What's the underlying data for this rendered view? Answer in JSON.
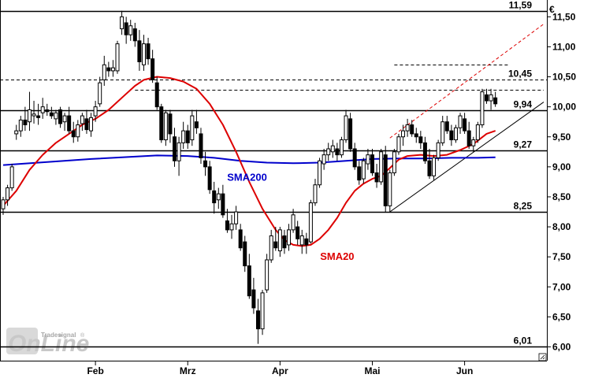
{
  "chart_data": {
    "type": "candlestick",
    "currency": "€",
    "y_ticks": [
      "11,50",
      "11,00",
      "10,50",
      "10,00",
      "9,50",
      "9,00",
      "8,50",
      "8,00",
      "7,50",
      "7,00",
      "6,50",
      "6,00"
    ],
    "y_tick_values": [
      11.5,
      11.0,
      10.5,
      10.0,
      9.5,
      9.0,
      8.5,
      8.0,
      7.5,
      7.0,
      6.5,
      6.0
    ],
    "ylim": [
      5.77,
      11.78
    ],
    "x_labels": [
      "Feb",
      "Mrz",
      "Apr",
      "Mai",
      "Jun"
    ],
    "x_label_days": [
      21,
      42,
      63,
      84,
      105
    ],
    "total_days": 123,
    "levels": [
      {
        "value": 11.59,
        "label": "11,59",
        "style": "solid"
      },
      {
        "value": 10.45,
        "label": "10,45",
        "style": "dashed"
      },
      {
        "value": 9.94,
        "label": "9,94",
        "style": "solid"
      },
      {
        "value": 9.27,
        "label": "9,27",
        "style": "solid"
      },
      {
        "value": 8.25,
        "label": "8,25",
        "style": "solid"
      },
      {
        "value": 6.01,
        "label": "6,01",
        "style": "solid"
      }
    ],
    "extra_dashed": [
      {
        "value": 10.29,
        "from_day": 30,
        "to_day": 123
      },
      {
        "value": 10.7,
        "from_day": 89,
        "to_day": 115
      }
    ],
    "trend_lines": [
      {
        "from": [
          88,
          8.25
        ],
        "to": [
          123,
          10.08
        ],
        "color": "#000000",
        "dashed": false
      },
      {
        "from": [
          88,
          9.48
        ],
        "to": [
          123,
          11.38
        ],
        "color": "#dd0000",
        "dashed": true
      }
    ],
    "candles": [
      [
        0,
        8.3,
        8.5,
        8.2,
        8.45
      ],
      [
        1,
        8.45,
        8.7,
        8.35,
        8.65
      ],
      [
        2,
        8.65,
        9.05,
        8.6,
        9.0
      ],
      [
        3,
        9.55,
        9.7,
        9.45,
        9.6
      ],
      [
        4,
        9.6,
        9.85,
        9.5,
        9.78
      ],
      [
        5,
        9.78,
        10.0,
        9.6,
        9.7
      ],
      [
        6,
        9.75,
        10.25,
        9.6,
        9.95
      ],
      [
        7,
        9.85,
        10.1,
        9.72,
        9.88
      ],
      [
        8,
        9.85,
        10.05,
        9.7,
        9.82
      ],
      [
        9,
        9.9,
        10.15,
        9.8,
        10.0
      ],
      [
        10,
        9.95,
        10.05,
        9.85,
        9.92
      ],
      [
        11,
        9.9,
        10.0,
        9.8,
        9.85
      ],
      [
        12,
        9.8,
        9.95,
        9.7,
        9.9
      ],
      [
        13,
        9.95,
        10.0,
        9.65,
        9.72
      ],
      [
        14,
        9.75,
        9.9,
        9.6,
        9.85
      ],
      [
        15,
        9.85,
        10.0,
        9.55,
        9.6
      ],
      [
        16,
        9.6,
        9.75,
        9.4,
        9.5
      ],
      [
        17,
        9.5,
        9.78,
        9.42,
        9.7
      ],
      [
        18,
        9.72,
        9.9,
        9.6,
        9.85
      ],
      [
        19,
        9.8,
        9.95,
        9.55,
        9.62
      ],
      [
        20,
        9.6,
        9.9,
        9.5,
        9.82
      ],
      [
        21,
        9.85,
        10.1,
        9.75,
        10.0
      ],
      [
        22,
        10.05,
        10.5,
        10.0,
        10.4
      ],
      [
        23,
        10.45,
        10.85,
        10.35,
        10.7
      ],
      [
        24,
        10.65,
        10.75,
        10.5,
        10.6
      ],
      [
        25,
        10.6,
        10.78,
        10.5,
        10.65
      ],
      [
        26,
        10.6,
        11.1,
        10.55,
        11.05
      ],
      [
        27,
        11.3,
        11.6,
        11.2,
        11.5
      ],
      [
        28,
        11.4,
        11.5,
        11.05,
        11.2
      ],
      [
        29,
        11.2,
        11.45,
        11.1,
        11.35
      ],
      [
        30,
        11.3,
        11.4,
        11.0,
        11.1
      ],
      [
        31,
        11.1,
        11.28,
        10.6,
        10.75
      ],
      [
        32,
        10.7,
        11.2,
        10.6,
        11.05
      ],
      [
        33,
        11.05,
        11.15,
        10.7,
        10.8
      ],
      [
        34,
        10.8,
        10.95,
        10.4,
        10.45
      ],
      [
        35,
        10.4,
        10.5,
        9.95,
        10.0
      ],
      [
        36,
        10.0,
        10.05,
        9.4,
        9.45
      ],
      [
        37,
        9.45,
        9.95,
        9.35,
        9.9
      ],
      [
        38,
        9.88,
        9.95,
        9.4,
        9.55
      ],
      [
        39,
        9.5,
        9.65,
        9.0,
        9.1
      ],
      [
        40,
        9.1,
        9.5,
        8.85,
        9.4
      ],
      [
        41,
        9.4,
        9.75,
        9.3,
        9.6
      ],
      [
        42,
        9.6,
        9.7,
        9.3,
        9.4
      ],
      [
        43,
        9.45,
        9.95,
        9.35,
        9.85
      ],
      [
        44,
        9.75,
        9.95,
        9.55,
        9.65
      ],
      [
        45,
        9.55,
        9.65,
        9.05,
        9.15
      ],
      [
        46,
        9.1,
        9.25,
        8.85,
        9.0
      ],
      [
        47,
        9.0,
        9.1,
        8.55,
        8.62
      ],
      [
        48,
        8.6,
        8.75,
        8.22,
        8.4
      ],
      [
        49,
        8.45,
        8.65,
        8.3,
        8.55
      ],
      [
        50,
        8.55,
        8.7,
        8.15,
        8.2
      ],
      [
        51,
        8.1,
        8.3,
        7.9,
        7.95
      ],
      [
        52,
        7.95,
        8.2,
        7.8,
        8.05
      ],
      [
        53,
        8.05,
        8.35,
        7.95,
        8.25
      ],
      [
        54,
        7.95,
        8.05,
        7.6,
        7.65
      ],
      [
        55,
        7.75,
        7.85,
        7.25,
        7.35
      ],
      [
        56,
        7.35,
        7.55,
        6.8,
        6.85
      ],
      [
        57,
        6.95,
        7.15,
        6.55,
        6.65
      ],
      [
        58,
        6.6,
        6.8,
        6.05,
        6.3
      ],
      [
        59,
        6.3,
        6.95,
        6.2,
        6.9
      ],
      [
        60,
        6.95,
        7.55,
        6.9,
        7.45
      ],
      [
        61,
        7.45,
        7.95,
        7.4,
        7.85
      ],
      [
        62,
        7.75,
        8.0,
        7.6,
        7.65
      ],
      [
        63,
        7.6,
        8.0,
        7.5,
        7.95
      ],
      [
        64,
        7.85,
        7.95,
        7.55,
        7.65
      ],
      [
        65,
        7.7,
        8.05,
        7.6,
        7.95
      ],
      [
        66,
        7.95,
        8.3,
        7.9,
        8.2
      ],
      [
        67,
        8.0,
        8.1,
        7.7,
        7.8
      ],
      [
        68,
        7.7,
        7.95,
        7.55,
        7.85
      ],
      [
        69,
        7.8,
        7.9,
        7.55,
        7.7
      ],
      [
        70,
        7.75,
        8.45,
        7.72,
        8.4
      ],
      [
        71,
        8.4,
        8.8,
        8.35,
        8.7
      ],
      [
        72,
        8.7,
        9.15,
        8.65,
        9.1
      ],
      [
        73,
        9.05,
        9.3,
        8.95,
        9.2
      ],
      [
        74,
        9.2,
        9.4,
        9.1,
        9.3
      ],
      [
        75,
        9.25,
        9.45,
        9.15,
        9.35
      ],
      [
        76,
        9.3,
        9.4,
        9.1,
        9.2
      ],
      [
        77,
        9.2,
        9.5,
        9.15,
        9.45
      ],
      [
        78,
        9.45,
        9.95,
        9.4,
        9.85
      ],
      [
        79,
        9.8,
        9.9,
        9.25,
        9.3
      ],
      [
        80,
        9.3,
        9.4,
        8.95,
        9.0
      ],
      [
        81,
        9.0,
        9.1,
        8.7,
        8.78
      ],
      [
        82,
        8.8,
        9.15,
        8.72,
        9.1
      ],
      [
        83,
        9.05,
        9.3,
        8.95,
        9.2
      ],
      [
        84,
        9.2,
        9.3,
        8.85,
        8.9
      ],
      [
        85,
        8.9,
        9.05,
        8.65,
        8.75
      ],
      [
        86,
        8.75,
        9.3,
        8.7,
        9.25
      ],
      [
        87,
        9.2,
        9.35,
        8.25,
        8.35
      ],
      [
        88,
        8.35,
        8.95,
        8.25,
        8.9
      ],
      [
        89,
        8.9,
        9.3,
        8.85,
        9.25
      ],
      [
        90,
        9.25,
        9.55,
        9.2,
        9.5
      ],
      [
        91,
        9.5,
        9.7,
        9.35,
        9.6
      ],
      [
        92,
        9.6,
        9.8,
        9.5,
        9.7
      ],
      [
        93,
        9.7,
        9.78,
        9.5,
        9.55
      ],
      [
        94,
        9.55,
        9.65,
        9.4,
        9.5
      ],
      [
        95,
        9.5,
        9.6,
        9.3,
        9.4
      ],
      [
        96,
        9.4,
        9.5,
        9.05,
        9.1
      ],
      [
        97,
        9.1,
        9.3,
        8.8,
        8.85
      ],
      [
        98,
        8.85,
        9.2,
        8.78,
        9.15
      ],
      [
        99,
        9.15,
        9.45,
        9.1,
        9.4
      ],
      [
        100,
        9.4,
        9.85,
        9.35,
        9.75
      ],
      [
        101,
        9.75,
        9.85,
        9.55,
        9.6
      ],
      [
        102,
        9.6,
        9.7,
        9.35,
        9.45
      ],
      [
        103,
        9.45,
        9.7,
        9.4,
        9.65
      ],
      [
        104,
        9.65,
        9.9,
        9.55,
        9.85
      ],
      [
        105,
        9.8,
        9.9,
        9.55,
        9.6
      ],
      [
        106,
        9.6,
        9.75,
        9.3,
        9.35
      ],
      [
        107,
        9.35,
        9.5,
        9.25,
        9.45
      ],
      [
        108,
        9.45,
        9.75,
        9.4,
        9.7
      ],
      [
        109,
        9.7,
        10.3,
        9.65,
        10.25
      ],
      [
        110,
        10.2,
        10.3,
        10.05,
        10.1
      ],
      [
        111,
        10.1,
        10.3,
        9.95,
        10.2
      ],
      [
        112,
        10.15,
        10.25,
        10.0,
        10.05
      ]
    ],
    "sma20": [
      [
        0,
        8.35
      ],
      [
        3,
        8.6
      ],
      [
        6,
        8.95
      ],
      [
        9,
        9.2
      ],
      [
        12,
        9.4
      ],
      [
        15,
        9.55
      ],
      [
        18,
        9.7
      ],
      [
        21,
        9.8
      ],
      [
        24,
        9.95
      ],
      [
        27,
        10.15
      ],
      [
        30,
        10.35
      ],
      [
        32,
        10.45
      ],
      [
        35,
        10.5
      ],
      [
        38,
        10.48
      ],
      [
        41,
        10.42
      ],
      [
        44,
        10.3
      ],
      [
        47,
        10.05
      ],
      [
        50,
        9.7
      ],
      [
        53,
        9.25
      ],
      [
        56,
        8.75
      ],
      [
        59,
        8.3
      ],
      [
        62,
        7.95
      ],
      [
        64,
        7.78
      ],
      [
        66,
        7.7
      ],
      [
        68,
        7.68
      ],
      [
        70,
        7.7
      ],
      [
        72,
        7.8
      ],
      [
        74,
        7.95
      ],
      [
        76,
        8.15
      ],
      [
        78,
        8.4
      ],
      [
        80,
        8.6
      ],
      [
        82,
        8.72
      ],
      [
        84,
        8.8
      ],
      [
        86,
        8.85
      ],
      [
        88,
        8.98
      ],
      [
        90,
        9.12
      ],
      [
        92,
        9.18
      ],
      [
        95,
        9.2
      ],
      [
        98,
        9.18
      ],
      [
        101,
        9.2
      ],
      [
        104,
        9.28
      ],
      [
        107,
        9.38
      ],
      [
        110,
        9.55
      ],
      [
        112,
        9.6
      ]
    ],
    "sma200": [
      [
        0,
        9.03
      ],
      [
        10,
        9.08
      ],
      [
        20,
        9.13
      ],
      [
        30,
        9.17
      ],
      [
        35,
        9.19
      ],
      [
        42,
        9.18
      ],
      [
        48,
        9.15
      ],
      [
        54,
        9.1
      ],
      [
        60,
        9.07
      ],
      [
        66,
        9.06
      ],
      [
        72,
        9.07
      ],
      [
        78,
        9.1
      ],
      [
        84,
        9.13
      ],
      [
        90,
        9.14
      ],
      [
        96,
        9.14
      ],
      [
        102,
        9.15
      ],
      [
        108,
        9.15
      ],
      [
        112,
        9.16
      ]
    ],
    "series_labels": [
      {
        "name": "SMA200",
        "color": "#0000cc",
        "day": 55.5,
        "value": 8.77
      },
      {
        "name": "SMA20",
        "color": "#dd0000",
        "day": 76,
        "value": 7.45
      }
    ]
  },
  "branding": {
    "small": "Tradesignal",
    "big": "OnLine",
    "registered": "®"
  }
}
